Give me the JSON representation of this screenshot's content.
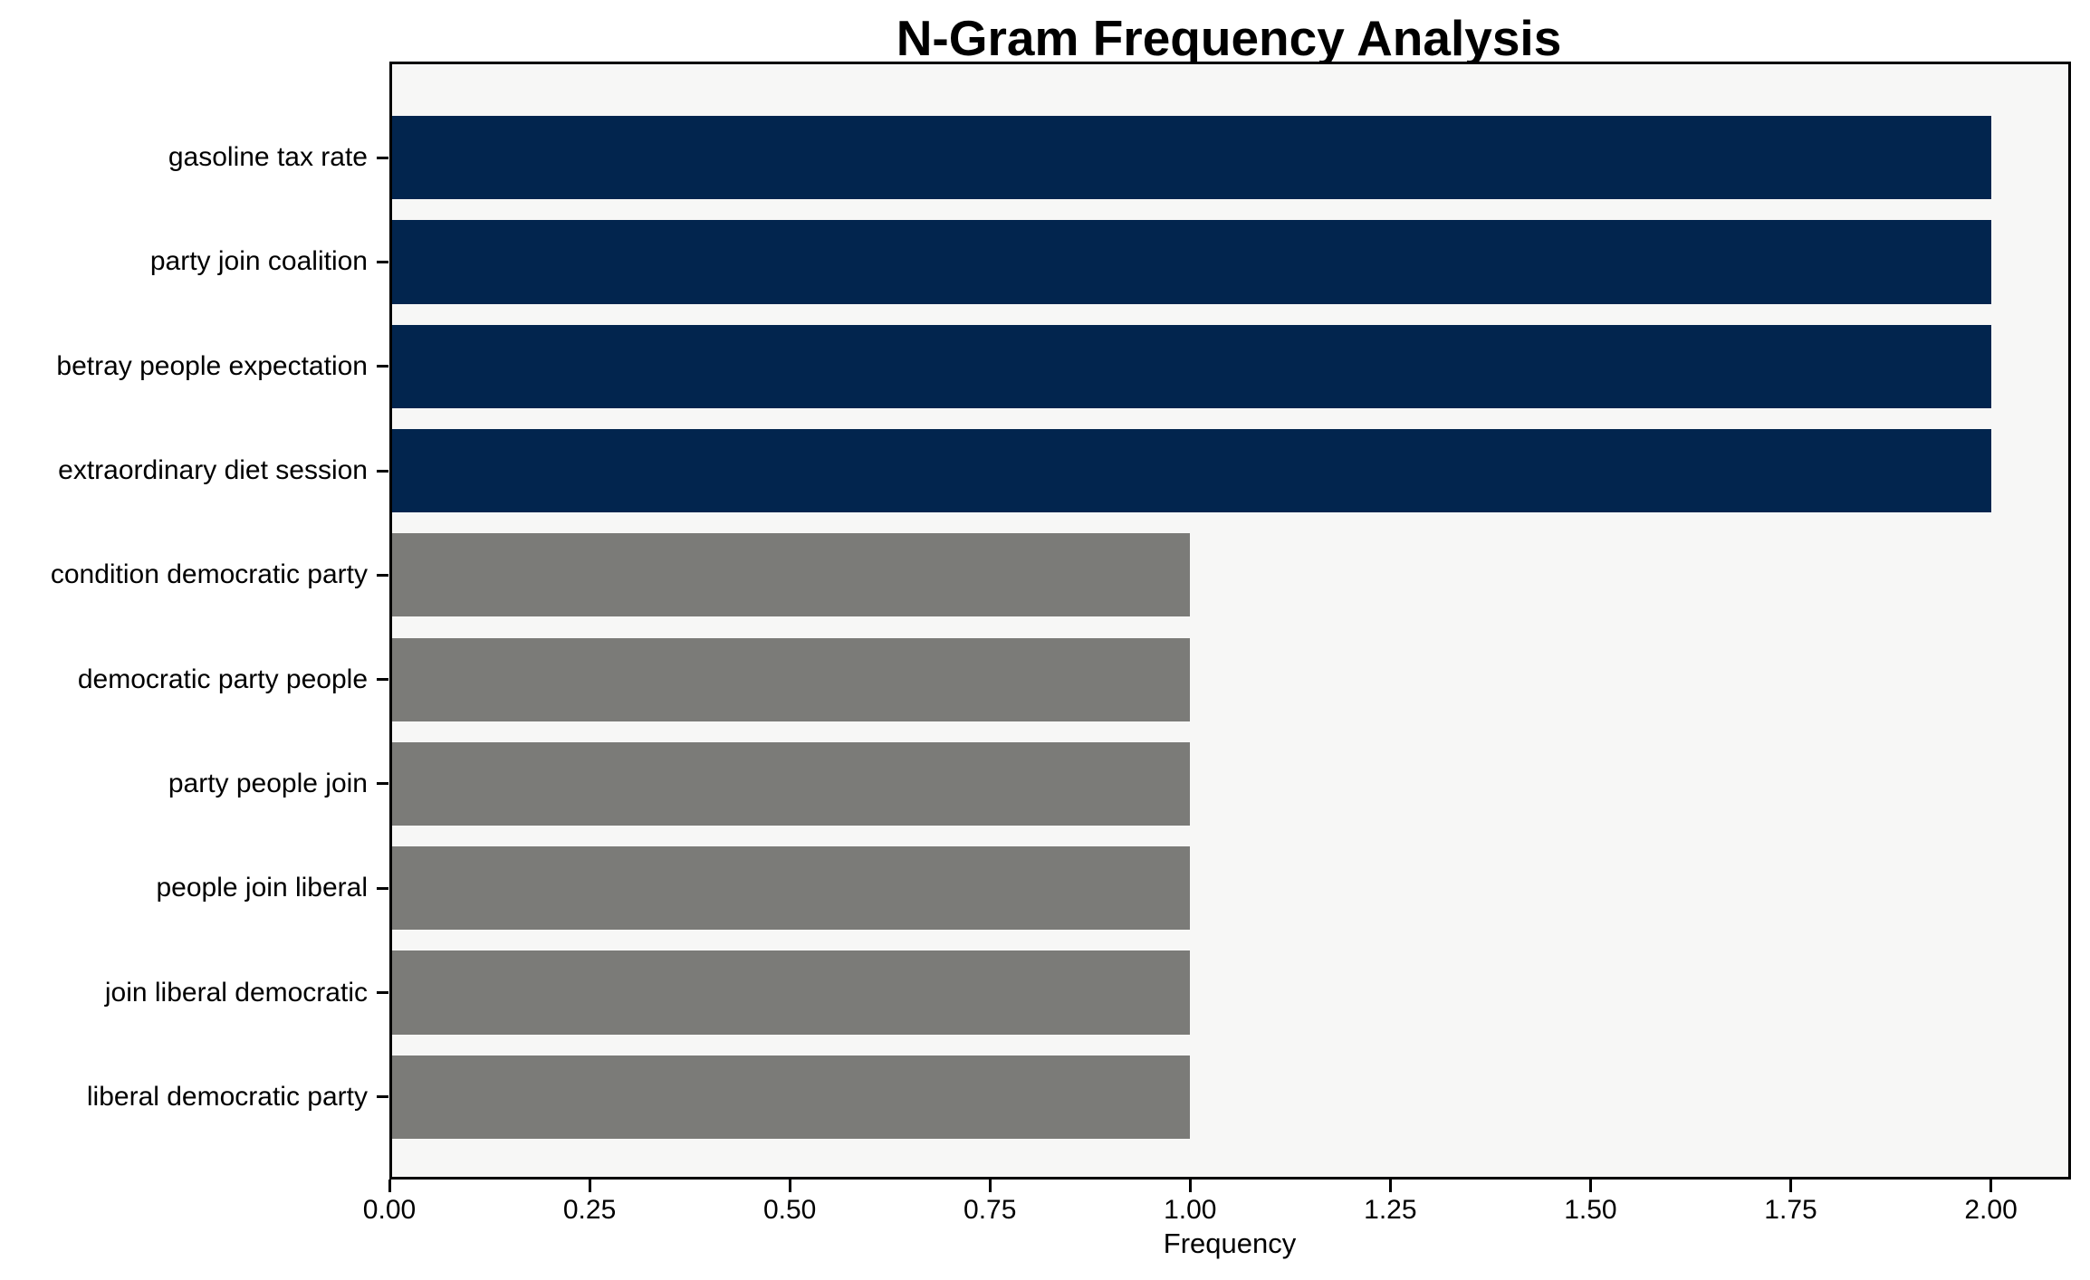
{
  "figure": {
    "background": "#ffffff",
    "plot_background": "#f7f7f6",
    "spine_color": "#000000",
    "text_color": "#000000"
  },
  "chart_data": {
    "type": "bar",
    "orientation": "horizontal",
    "title": "N-Gram Frequency Analysis",
    "xlabel": "Frequency",
    "ylabel": "",
    "categories": [
      "gasoline tax rate",
      "party join coalition",
      "betray people expectation",
      "extraordinary diet session",
      "condition democratic party",
      "democratic party people",
      "party people join",
      "people join liberal",
      "join liberal democratic",
      "liberal democratic party"
    ],
    "values": [
      2,
      2,
      2,
      2,
      1,
      1,
      1,
      1,
      1,
      1
    ],
    "bar_colors": [
      "#02254e",
      "#02254e",
      "#02254e",
      "#02254e",
      "#7b7b78",
      "#7b7b78",
      "#7b7b78",
      "#7b7b78",
      "#7b7b78",
      "#7b7b78"
    ],
    "xlim": [
      0,
      2.1
    ],
    "x_tick_values": [
      0,
      0.25,
      0.5,
      0.75,
      1.0,
      1.25,
      1.5,
      1.75,
      2.0
    ],
    "x_tick_labels": [
      "0.00",
      "0.25",
      "0.50",
      "0.75",
      "1.00",
      "1.25",
      "1.50",
      "1.75",
      "2.00"
    ],
    "grid": false,
    "legend": null
  }
}
